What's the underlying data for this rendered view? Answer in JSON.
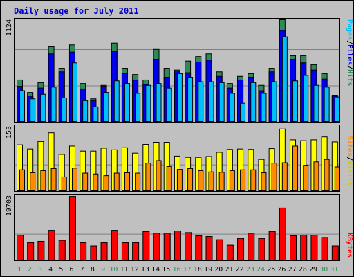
{
  "title": "Daily usage for July 2011",
  "colors": {
    "background": "#c0c0c0",
    "title": "#0000cc",
    "hits": "#2e8b57",
    "files": "#0000ee",
    "pages": "#00bfff",
    "visits": "#ffff00",
    "sites": "#ff8c00",
    "kbytes": "#ff0000",
    "weekend_day": "#2e8b57",
    "weekday": "#000000",
    "gridline": "#808080"
  },
  "chart_data": [
    {
      "type": "bar",
      "panel": "hits-files-pages",
      "categories": [
        "1",
        "2",
        "3",
        "4",
        "5",
        "6",
        "7",
        "8",
        "9",
        "10",
        "11",
        "12",
        "13",
        "14",
        "15",
        "16",
        "17",
        "18",
        "19",
        "20",
        "21",
        "22",
        "23",
        "24",
        "25",
        "26",
        "27",
        "28",
        "29",
        "30",
        "31"
      ],
      "ymax_label": "1124",
      "ylim": [
        0,
        1124
      ],
      "grid": true,
      "series": [
        {
          "name": "Hits",
          "values": [
            470,
            330,
            440,
            840,
            600,
            860,
            430,
            260,
            410,
            880,
            600,
            530,
            470,
            810,
            600,
            580,
            680,
            730,
            760,
            560,
            430,
            510,
            540,
            410,
            600,
            1170,
            740,
            740,
            640,
            540,
            300
          ]
        },
        {
          "name": "Files",
          "values": [
            400,
            290,
            380,
            760,
            560,
            780,
            370,
            240,
            400,
            790,
            540,
            470,
            420,
            700,
            500,
            570,
            550,
            670,
            690,
            510,
            380,
            470,
            500,
            350,
            560,
            1020,
            700,
            660,
            580,
            480,
            290
          ]
        },
        {
          "name": "Pages",
          "values": [
            350,
            260,
            310,
            390,
            270,
            660,
            240,
            170,
            330,
            460,
            430,
            320,
            410,
            430,
            380,
            540,
            500,
            450,
            450,
            440,
            320,
            210,
            440,
            320,
            450,
            950,
            460,
            520,
            410,
            390,
            280
          ]
        }
      ]
    },
    {
      "type": "bar",
      "panel": "visits-sites",
      "categories": [
        "1",
        "2",
        "3",
        "4",
        "5",
        "6",
        "7",
        "8",
        "9",
        "10",
        "11",
        "12",
        "13",
        "14",
        "15",
        "16",
        "17",
        "18",
        "19",
        "20",
        "21",
        "22",
        "23",
        "24",
        "25",
        "26",
        "27",
        "28",
        "29",
        "30",
        "31"
      ],
      "ymax_label": "153",
      "ylim": [
        0,
        153
      ],
      "grid": true,
      "series": [
        {
          "name": "Visits",
          "values": [
            112,
            102,
            120,
            141,
            89,
            109,
            97,
            97,
            104,
            100,
            105,
            92,
            113,
            118,
            118,
            85,
            82,
            82,
            84,
            94,
            101,
            102,
            101,
            77,
            103,
            150,
            124,
            122,
            124,
            131,
            119
          ]
        },
        {
          "name": "Sites",
          "values": [
            52,
            45,
            50,
            55,
            35,
            56,
            44,
            42,
            38,
            44,
            45,
            44,
            68,
            74,
            60,
            53,
            55,
            50,
            47,
            46,
            50,
            52,
            52,
            45,
            68,
            69,
            109,
            63,
            71,
            77,
            59
          ]
        }
      ]
    },
    {
      "type": "bar",
      "panel": "kbytes",
      "categories": [
        "1",
        "2",
        "3",
        "4",
        "5",
        "6",
        "7",
        "8",
        "9",
        "10",
        "11",
        "12",
        "13",
        "14",
        "15",
        "16",
        "17",
        "18",
        "19",
        "20",
        "21",
        "22",
        "23",
        "24",
        "25",
        "26",
        "27",
        "28",
        "29",
        "30",
        "31"
      ],
      "ymax_label": "19703",
      "ylim": [
        0,
        19703
      ],
      "grid": true,
      "series": [
        {
          "name": "KBytes",
          "values": [
            7900,
            5600,
            6000,
            9400,
            6300,
            19900,
            5600,
            4600,
            5600,
            9400,
            5600,
            5600,
            9000,
            8500,
            8500,
            9200,
            8700,
            7700,
            7500,
            6500,
            4800,
            6900,
            8500,
            6900,
            9000,
            16300,
            7700,
            7900,
            7900,
            7200,
            4600
          ]
        }
      ]
    }
  ],
  "legend_main": {
    "pages": "Pages",
    "files": "Files",
    "hits": "Hits",
    "sep": "/"
  },
  "legend_mid": {
    "sites": "Sites",
    "visits": "Visits",
    "sep": "/"
  },
  "legend_bottom": {
    "kbytes": "KBytes"
  },
  "weekend_days": [
    2,
    3,
    9,
    10,
    16,
    17,
    23,
    24,
    30,
    31
  ]
}
